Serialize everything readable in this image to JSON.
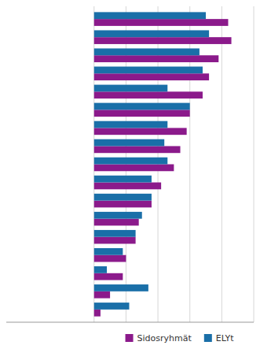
{
  "chart_data": {
    "type": "bar",
    "orientation": "horizontal",
    "categories": [
      null,
      null,
      null,
      null,
      null,
      null,
      null,
      null,
      null,
      null,
      null,
      null,
      null,
      null,
      null,
      null,
      null
    ],
    "series": [
      {
        "name": "Sidosryhmät",
        "color": "#8B1A8B",
        "values": [
          84,
          86,
          78,
          72,
          68,
          60,
          58,
          54,
          50,
          42,
          36,
          28,
          26,
          20,
          18,
          10,
          4
        ]
      },
      {
        "name": "ELYt",
        "color": "#1A6FA8",
        "values": [
          70,
          72,
          66,
          68,
          46,
          60,
          46,
          44,
          46,
          36,
          36,
          30,
          26,
          18,
          8,
          34,
          22
        ]
      }
    ],
    "xlim": [
      -55,
      100
    ],
    "xticks": [
      0,
      20,
      40,
      60,
      80,
      100
    ],
    "grid": true,
    "tick_labels": false,
    "legend": "bottom"
  }
}
